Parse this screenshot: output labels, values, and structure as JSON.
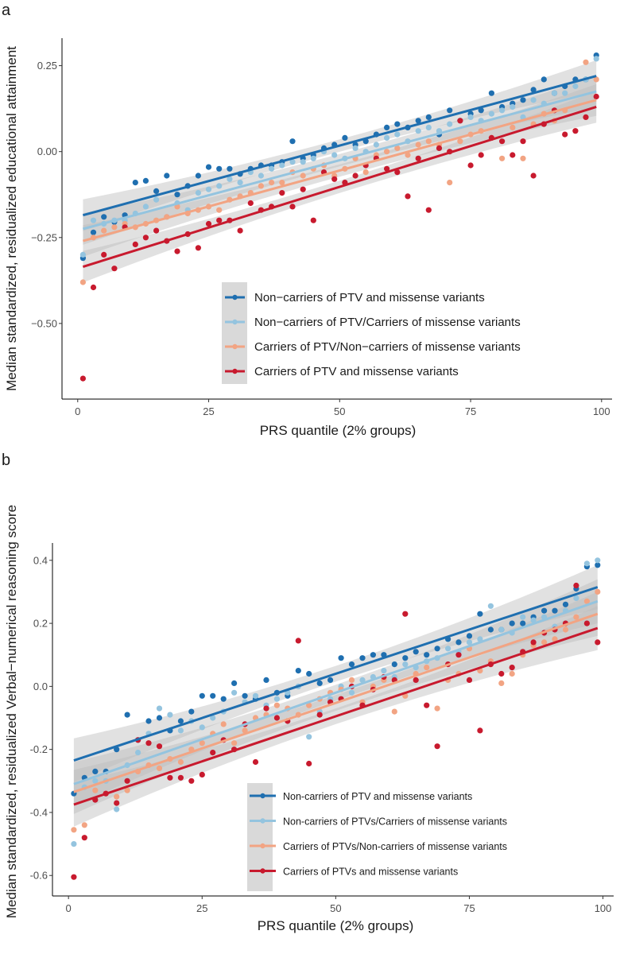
{
  "colors": {
    "noncarrier_both": "#1f6fb0",
    "noncarrier_ptv_carrier_missense": "#94c4df",
    "carrier_ptv_noncarrier_missense": "#f2a483",
    "carrier_both": "#c81a2e",
    "ci_band": "#bdbdbd"
  },
  "chart_data": [
    {
      "panel_label": "a",
      "type": "scatter",
      "xlabel": "PRS quantile (2% groups)",
      "ylabel": "Median standardized, residualized educational attainment",
      "xlim": [
        -3,
        102
      ],
      "ylim": [
        -0.72,
        0.33
      ],
      "xticks": [
        0,
        25,
        50,
        75,
        100
      ],
      "xtick_labels": [
        "0",
        "25",
        "50",
        "75",
        "100"
      ],
      "yticks": [
        -0.5,
        -0.25,
        0,
        0.25
      ],
      "ytick_labels": [
        "−0.50",
        "−0.25",
        "0.00",
        "0.25"
      ],
      "legend_position": "bottom-right",
      "series": [
        {
          "name": "Non−carriers of PTV and missense variants",
          "color_key": "noncarrier_both",
          "fit": [
            [
              1,
              -0.185
            ],
            [
              99,
              0.22
            ]
          ],
          "x": [
            1,
            3,
            5,
            7,
            9,
            11,
            13,
            15,
            17,
            19,
            21,
            23,
            25,
            27,
            29,
            31,
            33,
            35,
            37,
            39,
            41,
            43,
            45,
            47,
            49,
            51,
            53,
            55,
            57,
            59,
            61,
            63,
            65,
            67,
            69,
            71,
            73,
            75,
            77,
            79,
            81,
            83,
            85,
            87,
            89,
            91,
            93,
            95,
            97,
            99
          ],
          "y": [
            -0.31,
            -0.235,
            -0.19,
            -0.205,
            -0.185,
            -0.09,
            -0.085,
            -0.115,
            -0.07,
            -0.125,
            -0.1,
            -0.07,
            -0.045,
            -0.05,
            -0.05,
            -0.065,
            -0.05,
            -0.04,
            -0.04,
            -0.03,
            0.03,
            -0.02,
            -0.01,
            0.01,
            0.02,
            0.04,
            0.02,
            0.03,
            0.05,
            0.07,
            0.08,
            0.07,
            0.09,
            0.1,
            0.05,
            0.12,
            0.09,
            0.11,
            0.12,
            0.17,
            0.13,
            0.14,
            0.15,
            0.18,
            0.21,
            0.17,
            0.19,
            0.21,
            0.21,
            0.28
          ]
        },
        {
          "name": "Non−carriers of PTV/Carriers of missense variants",
          "color_key": "noncarrier_ptv_carrier_missense",
          "fit": [
            [
              1,
              -0.225
            ],
            [
              99,
              0.175
            ]
          ],
          "x": [
            1,
            3,
            5,
            7,
            9,
            11,
            13,
            15,
            17,
            19,
            21,
            23,
            25,
            27,
            29,
            31,
            33,
            35,
            37,
            39,
            41,
            43,
            45,
            47,
            49,
            51,
            53,
            55,
            57,
            59,
            61,
            63,
            65,
            67,
            69,
            71,
            73,
            75,
            77,
            79,
            81,
            83,
            85,
            87,
            89,
            91,
            93,
            95,
            97,
            99
          ],
          "y": [
            -0.3,
            -0.2,
            -0.21,
            -0.2,
            -0.2,
            -0.18,
            -0.16,
            -0.14,
            -0.19,
            -0.15,
            -0.17,
            -0.12,
            -0.11,
            -0.1,
            -0.08,
            -0.09,
            -0.06,
            -0.07,
            -0.05,
            -0.04,
            -0.03,
            -0.03,
            -0.02,
            0.0,
            -0.01,
            -0.02,
            0.01,
            0.0,
            0.02,
            0.04,
            0.05,
            0.03,
            0.06,
            0.07,
            0.06,
            0.08,
            0.09,
            0.1,
            0.09,
            0.11,
            0.12,
            0.13,
            0.1,
            0.15,
            0.14,
            0.17,
            0.17,
            0.19,
            0.21,
            0.27
          ]
        },
        {
          "name": "Carriers of PTV/Non−carriers of missense variants",
          "color_key": "carrier_ptv_noncarrier_missense",
          "fit": [
            [
              1,
              -0.26
            ],
            [
              99,
              0.15
            ]
          ],
          "x": [
            1,
            3,
            5,
            7,
            9,
            11,
            13,
            15,
            17,
            19,
            21,
            23,
            25,
            27,
            29,
            31,
            33,
            35,
            37,
            39,
            41,
            43,
            45,
            47,
            49,
            51,
            53,
            55,
            57,
            59,
            61,
            63,
            65,
            67,
            69,
            71,
            73,
            75,
            77,
            79,
            81,
            83,
            85,
            87,
            89,
            91,
            93,
            95,
            97,
            99
          ],
          "y": [
            -0.38,
            -0.25,
            -0.23,
            -0.22,
            -0.21,
            -0.22,
            -0.21,
            -0.2,
            -0.19,
            -0.16,
            -0.18,
            -0.17,
            -0.16,
            -0.17,
            -0.14,
            -0.13,
            -0.12,
            -0.1,
            -0.09,
            -0.09,
            -0.06,
            -0.07,
            -0.05,
            -0.04,
            -0.07,
            -0.05,
            -0.02,
            -0.06,
            -0.01,
            0.0,
            0.01,
            -0.01,
            0.02,
            0.03,
            0.02,
            -0.09,
            0.03,
            0.05,
            0.06,
            0.04,
            -0.02,
            0.07,
            -0.02,
            0.08,
            0.11,
            0.09,
            0.12,
            0.06,
            0.26,
            0.21
          ]
        },
        {
          "name": "Carriers of PTV and missense variants",
          "color_key": "carrier_both",
          "fit": [
            [
              1,
              -0.335
            ],
            [
              99,
              0.13
            ]
          ],
          "x": [
            1,
            3,
            5,
            7,
            9,
            11,
            13,
            15,
            17,
            19,
            21,
            23,
            25,
            27,
            29,
            31,
            33,
            35,
            37,
            39,
            41,
            43,
            45,
            47,
            49,
            51,
            53,
            55,
            57,
            59,
            61,
            63,
            65,
            67,
            69,
            71,
            73,
            75,
            77,
            79,
            81,
            83,
            85,
            87,
            89,
            91,
            93,
            95,
            97,
            99
          ],
          "y": [
            -0.66,
            -0.395,
            -0.3,
            -0.34,
            -0.22,
            -0.27,
            -0.25,
            -0.23,
            -0.26,
            -0.29,
            -0.24,
            -0.28,
            -0.21,
            -0.2,
            -0.2,
            -0.23,
            -0.15,
            -0.17,
            -0.16,
            -0.12,
            -0.16,
            -0.11,
            -0.2,
            -0.06,
            -0.08,
            -0.09,
            -0.07,
            -0.04,
            -0.02,
            -0.05,
            -0.06,
            -0.13,
            -0.02,
            -0.17,
            0.01,
            0.0,
            0.09,
            -0.04,
            -0.01,
            0.04,
            0.03,
            -0.01,
            0.03,
            -0.07,
            0.08,
            0.12,
            0.05,
            0.06,
            0.1,
            0.16
          ]
        }
      ]
    },
    {
      "panel_label": "b",
      "type": "scatter",
      "xlabel": "PRS quantile (2% groups)",
      "ylabel": "Median standardized, residualized Verbal−numerical reasoning score",
      "xlim": [
        -3,
        102
      ],
      "ylim": [
        -0.665,
        0.455
      ],
      "xticks": [
        0,
        25,
        50,
        75,
        100
      ],
      "xtick_labels": [
        "0",
        "25",
        "50",
        "75",
        "100"
      ],
      "yticks": [
        -0.6,
        -0.4,
        -0.2,
        0,
        0.2,
        0.4
      ],
      "ytick_labels": [
        "-0.6",
        "-0.4",
        "-0.2",
        "0.0",
        "0.2",
        "0.4"
      ],
      "legend_position": "bottom-right",
      "series": [
        {
          "name": "Non-carriers of PTV and missense variants",
          "color_key": "noncarrier_both",
          "fit": [
            [
              1,
              -0.235
            ],
            [
              99,
              0.315
            ]
          ],
          "x": [
            1,
            3,
            5,
            7,
            9,
            11,
            13,
            15,
            17,
            19,
            21,
            23,
            25,
            27,
            29,
            31,
            33,
            35,
            37,
            39,
            41,
            43,
            45,
            47,
            49,
            51,
            53,
            55,
            57,
            59,
            61,
            63,
            65,
            67,
            69,
            71,
            73,
            75,
            77,
            79,
            81,
            83,
            85,
            87,
            89,
            91,
            93,
            95,
            97,
            99
          ],
          "y": [
            -0.34,
            -0.29,
            -0.27,
            -0.27,
            -0.2,
            -0.09,
            -0.17,
            -0.11,
            -0.1,
            -0.14,
            -0.11,
            -0.08,
            -0.03,
            -0.03,
            -0.04,
            0.01,
            -0.03,
            -0.04,
            0.02,
            -0.02,
            -0.03,
            0.05,
            0.04,
            0.01,
            0.02,
            0.09,
            0.07,
            0.09,
            0.1,
            0.1,
            0.07,
            0.09,
            0.11,
            0.1,
            0.12,
            0.15,
            0.14,
            0.16,
            0.23,
            0.18,
            0.18,
            0.2,
            0.2,
            0.22,
            0.24,
            0.24,
            0.26,
            0.31,
            0.38,
            0.385
          ]
        },
        {
          "name": "Non-carriers of PTVs/Carriers of missense variants",
          "color_key": "noncarrier_ptv_carrier_missense",
          "fit": [
            [
              1,
              -0.31
            ],
            [
              99,
              0.27
            ]
          ],
          "x": [
            1,
            3,
            5,
            7,
            9,
            11,
            13,
            15,
            17,
            19,
            21,
            23,
            25,
            27,
            29,
            31,
            33,
            35,
            37,
            39,
            41,
            43,
            45,
            47,
            49,
            51,
            53,
            55,
            57,
            59,
            61,
            63,
            65,
            67,
            69,
            71,
            73,
            75,
            77,
            79,
            81,
            83,
            85,
            87,
            89,
            91,
            93,
            95,
            97,
            99
          ],
          "y": [
            -0.5,
            -0.32,
            -0.3,
            -0.3,
            -0.39,
            -0.25,
            -0.21,
            -0.15,
            -0.07,
            -0.09,
            -0.14,
            -0.11,
            -0.13,
            -0.1,
            -0.08,
            -0.02,
            -0.05,
            -0.03,
            -0.06,
            -0.04,
            -0.02,
            0.0,
            -0.16,
            -0.08,
            -0.04,
            0.0,
            -0.02,
            0.02,
            0.03,
            0.05,
            0.03,
            0.07,
            0.06,
            0.08,
            0.09,
            0.12,
            0.11,
            0.14,
            0.15,
            0.255,
            0.18,
            0.17,
            0.22,
            0.21,
            0.22,
            0.19,
            0.24,
            0.28,
            0.39,
            0.4
          ]
        },
        {
          "name": "Carriers of PTVs/Non-carriers of missense variants",
          "color_key": "carrier_ptv_noncarrier_missense",
          "fit": [
            [
              1,
              -0.335
            ],
            [
              99,
              0.23
            ]
          ],
          "x": [
            1,
            3,
            5,
            7,
            9,
            11,
            13,
            15,
            17,
            19,
            21,
            23,
            25,
            27,
            29,
            31,
            33,
            35,
            37,
            39,
            41,
            43,
            45,
            47,
            49,
            51,
            53,
            55,
            57,
            59,
            61,
            63,
            65,
            67,
            69,
            71,
            73,
            75,
            77,
            79,
            81,
            83,
            85,
            87,
            89,
            91,
            93,
            95,
            97,
            99
          ],
          "y": [
            -0.455,
            -0.44,
            -0.33,
            -0.34,
            -0.35,
            -0.33,
            -0.27,
            -0.25,
            -0.26,
            -0.23,
            -0.24,
            -0.2,
            -0.18,
            -0.15,
            -0.12,
            -0.18,
            -0.14,
            -0.1,
            -0.09,
            -0.06,
            -0.07,
            -0.09,
            -0.06,
            -0.04,
            -0.02,
            -0.01,
            0.02,
            -0.05,
            0.0,
            0.02,
            -0.08,
            -0.03,
            0.04,
            0.06,
            -0.07,
            0.02,
            0.04,
            0.12,
            0.05,
            0.08,
            0.01,
            0.04,
            0.1,
            0.13,
            0.14,
            0.15,
            0.18,
            0.22,
            0.27,
            0.3
          ]
        },
        {
          "name": "Carriers of PTVs and missense variants",
          "color_key": "carrier_both",
          "fit": [
            [
              1,
              -0.375
            ],
            [
              99,
              0.185
            ]
          ],
          "x": [
            1,
            3,
            5,
            7,
            9,
            11,
            13,
            15,
            17,
            19,
            21,
            23,
            25,
            27,
            29,
            31,
            33,
            35,
            37,
            39,
            41,
            43,
            45,
            47,
            49,
            51,
            53,
            55,
            57,
            59,
            61,
            63,
            65,
            67,
            69,
            71,
            73,
            75,
            77,
            79,
            81,
            83,
            85,
            87,
            89,
            91,
            93,
            95,
            97,
            99
          ],
          "y": [
            -0.605,
            -0.48,
            -0.36,
            -0.34,
            -0.37,
            -0.3,
            -0.17,
            -0.18,
            -0.19,
            -0.29,
            -0.29,
            -0.3,
            -0.28,
            -0.21,
            -0.17,
            -0.2,
            -0.12,
            -0.24,
            -0.07,
            -0.1,
            -0.11,
            0.145,
            -0.245,
            -0.09,
            -0.05,
            -0.04,
            0.0,
            -0.06,
            -0.01,
            0.03,
            0.02,
            0.23,
            0.02,
            -0.06,
            -0.19,
            0.07,
            0.1,
            0.02,
            -0.14,
            0.07,
            0.04,
            0.06,
            0.11,
            0.14,
            0.17,
            0.18,
            0.2,
            0.32,
            0.2,
            0.14
          ]
        }
      ]
    }
  ]
}
